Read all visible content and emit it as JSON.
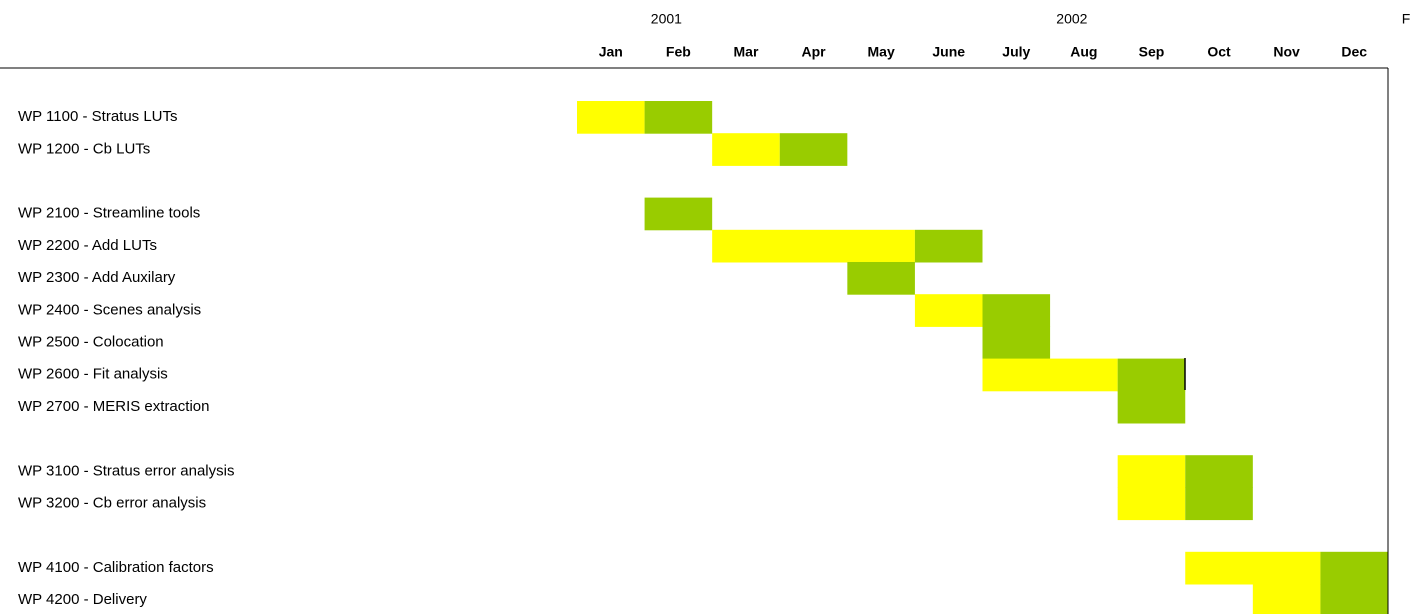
{
  "chart_data": {
    "type": "gantt",
    "categories": [
      "Jan",
      "Feb",
      "Mar",
      "Apr",
      "May",
      "June",
      "July",
      "Aug",
      "Sep",
      "Oct",
      "Nov",
      "Dec"
    ],
    "year_labels": [
      {
        "text": "2001",
        "col": 1
      },
      {
        "text": "2002",
        "col": 7
      },
      {
        "text": "F",
        "col": 12
      }
    ],
    "xlim": [
      0,
      12
    ],
    "rows": [
      {
        "label": "WP 1100 - Stratus LUTs",
        "bars": [
          {
            "start": 0,
            "end": 1,
            "color": "#ffff00"
          },
          {
            "start": 1,
            "end": 2,
            "color": "#99cc00"
          }
        ]
      },
      {
        "label": "WP 1200 - Cb LUTs",
        "bars": [
          {
            "start": 2,
            "end": 3,
            "color": "#ffff00"
          },
          {
            "start": 3,
            "end": 4,
            "color": "#99cc00"
          }
        ]
      },
      null,
      {
        "label": "WP 2100 - Streamline tools",
        "bars": [
          {
            "start": 1,
            "end": 2,
            "color": "#99cc00"
          }
        ]
      },
      {
        "label": "WP 2200 - Add LUTs",
        "bars": [
          {
            "start": 2,
            "end": 5,
            "color": "#ffff00"
          },
          {
            "start": 5,
            "end": 6,
            "color": "#99cc00"
          }
        ]
      },
      {
        "label": "WP 2300 - Add Auxilary",
        "bars": [
          {
            "start": 4,
            "end": 5,
            "color": "#99cc00"
          }
        ]
      },
      {
        "label": "WP 2400 - Scenes analysis",
        "bars": [
          {
            "start": 5,
            "end": 6,
            "color": "#ffff00"
          },
          {
            "start": 6,
            "end": 7,
            "color": "#99cc00"
          }
        ]
      },
      {
        "label": "WP 2500 - Colocation",
        "bars": [
          {
            "start": 6,
            "end": 7,
            "color": "#99cc00"
          }
        ]
      },
      {
        "label": "WP 2600 - Fit analysis",
        "bars": [
          {
            "start": 6,
            "end": 8,
            "color": "#ffff00"
          },
          {
            "start": 8,
            "end": 9,
            "color": "#99cc00"
          }
        ]
      },
      {
        "label": "WP 2700 - MERIS extraction",
        "bars": [
          {
            "start": 8,
            "end": 9,
            "color": "#99cc00"
          }
        ]
      },
      null,
      {
        "label": "WP 3100 - Stratus error analysis",
        "bars": [
          {
            "start": 8,
            "end": 9,
            "color": "#ffff00"
          },
          {
            "start": 9,
            "end": 10,
            "color": "#99cc00"
          }
        ]
      },
      {
        "label": "WP 3200 - Cb error analysis",
        "bars": [
          {
            "start": 8,
            "end": 9,
            "color": "#ffff00"
          },
          {
            "start": 9,
            "end": 10,
            "color": "#99cc00"
          }
        ]
      },
      null,
      {
        "label": "WP 4100 - Calibration factors",
        "bars": [
          {
            "start": 9,
            "end": 11,
            "color": "#ffff00"
          },
          {
            "start": 11,
            "end": 12,
            "color": "#99cc00"
          }
        ]
      },
      {
        "label": "WP 4200 - Delivery",
        "bars": [
          {
            "start": 10,
            "end": 11,
            "color": "#ffff00"
          },
          {
            "start": 11,
            "end": 12,
            "color": "#99cc00"
          }
        ]
      }
    ]
  }
}
